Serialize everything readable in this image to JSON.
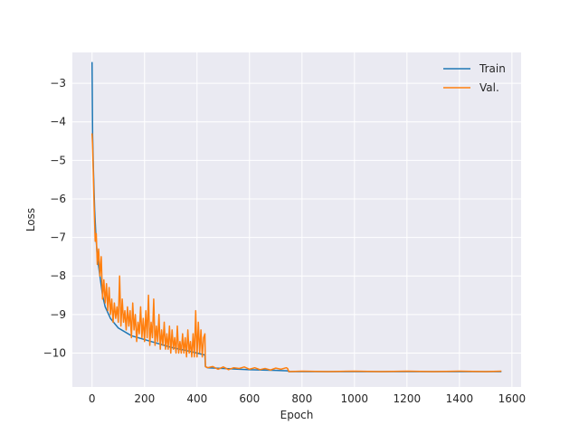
{
  "chart_data": {
    "type": "line",
    "title": "",
    "xlabel": "Epoch",
    "ylabel": "Loss",
    "xlim": [
      -75,
      1635
    ],
    "ylim": [
      -10.88,
      -2.2
    ],
    "x_ticks": [
      0,
      200,
      400,
      600,
      800,
      1000,
      1200,
      1400,
      1600
    ],
    "y_ticks": [
      -3,
      -4,
      -5,
      -6,
      -7,
      -8,
      -9,
      -10
    ],
    "grid": true,
    "legend_position": "top-right",
    "colors": {
      "background": "#eaeaf2",
      "grid": "#ffffff",
      "train": "#1f77b4",
      "val": "#ff7f0e"
    },
    "series": [
      {
        "name": "Train",
        "color": "#1f77b4",
        "x": [
          0,
          2,
          5,
          10,
          15,
          20,
          30,
          40,
          50,
          70,
          100,
          150,
          200,
          250,
          300,
          350,
          400,
          430,
          432,
          440,
          500,
          600,
          700,
          745,
          750,
          800,
          1000,
          1200,
          1400,
          1560
        ],
        "y": [
          -2.45,
          -4.3,
          -5.2,
          -6.3,
          -7.0,
          -7.5,
          -8.0,
          -8.5,
          -8.8,
          -9.1,
          -9.35,
          -9.55,
          -9.65,
          -9.75,
          -9.85,
          -9.92,
          -10.0,
          -10.05,
          -10.35,
          -10.38,
          -10.4,
          -10.43,
          -10.45,
          -10.46,
          -10.48,
          -10.48,
          -10.48,
          -10.48,
          -10.48,
          -10.48
        ]
      },
      {
        "name": "Val.",
        "color": "#ff7f0e",
        "x": [
          0,
          2,
          5,
          8,
          12,
          16,
          20,
          25,
          30,
          35,
          40,
          45,
          50,
          55,
          60,
          65,
          70,
          75,
          80,
          85,
          90,
          95,
          100,
          105,
          110,
          115,
          120,
          125,
          130,
          135,
          140,
          145,
          150,
          155,
          160,
          165,
          170,
          175,
          180,
          185,
          190,
          195,
          200,
          205,
          210,
          215,
          220,
          225,
          230,
          235,
          240,
          245,
          250,
          255,
          260,
          265,
          270,
          275,
          280,
          285,
          290,
          295,
          300,
          305,
          310,
          315,
          320,
          325,
          330,
          335,
          340,
          345,
          350,
          355,
          360,
          365,
          370,
          375,
          380,
          385,
          390,
          395,
          400,
          405,
          410,
          415,
          420,
          425,
          430,
          432,
          440,
          460,
          480,
          500,
          520,
          540,
          560,
          580,
          600,
          620,
          640,
          660,
          680,
          700,
          720,
          740,
          745,
          750,
          800,
          900,
          1000,
          1100,
          1200,
          1300,
          1400,
          1500,
          1560
        ],
        "y": [
          -4.3,
          -4.6,
          -5.4,
          -6.2,
          -7.1,
          -6.9,
          -7.7,
          -7.3,
          -8.0,
          -7.5,
          -8.6,
          -8.1,
          -8.7,
          -8.2,
          -8.9,
          -8.3,
          -9.0,
          -8.6,
          -9.2,
          -8.7,
          -9.1,
          -8.8,
          -9.2,
          -8.0,
          -9.3,
          -8.6,
          -9.2,
          -8.9,
          -9.4,
          -8.8,
          -9.3,
          -8.9,
          -9.6,
          -8.7,
          -9.4,
          -9.0,
          -9.7,
          -9.2,
          -9.5,
          -8.8,
          -9.6,
          -9.1,
          -9.7,
          -8.9,
          -9.6,
          -8.5,
          -9.8,
          -9.2,
          -9.6,
          -8.6,
          -9.8,
          -9.3,
          -9.7,
          -9.0,
          -9.9,
          -9.4,
          -9.8,
          -9.2,
          -9.9,
          -9.5,
          -9.9,
          -9.3,
          -10.0,
          -9.4,
          -9.9,
          -9.6,
          -10.0,
          -9.3,
          -10.0,
          -9.7,
          -10.0,
          -9.5,
          -10.0,
          -9.6,
          -10.1,
          -9.4,
          -10.0,
          -9.7,
          -10.1,
          -9.5,
          -10.1,
          -8.9,
          -10.1,
          -9.2,
          -10.0,
          -9.4,
          -10.1,
          -9.6,
          -9.5,
          -10.35,
          -10.38,
          -10.35,
          -10.42,
          -10.36,
          -10.43,
          -10.38,
          -10.4,
          -10.36,
          -10.42,
          -10.38,
          -10.43,
          -10.4,
          -10.44,
          -10.39,
          -10.42,
          -10.38,
          -10.4,
          -10.48,
          -10.47,
          -10.48,
          -10.47,
          -10.48,
          -10.47,
          -10.48,
          -10.47,
          -10.48,
          -10.47
        ]
      }
    ]
  }
}
